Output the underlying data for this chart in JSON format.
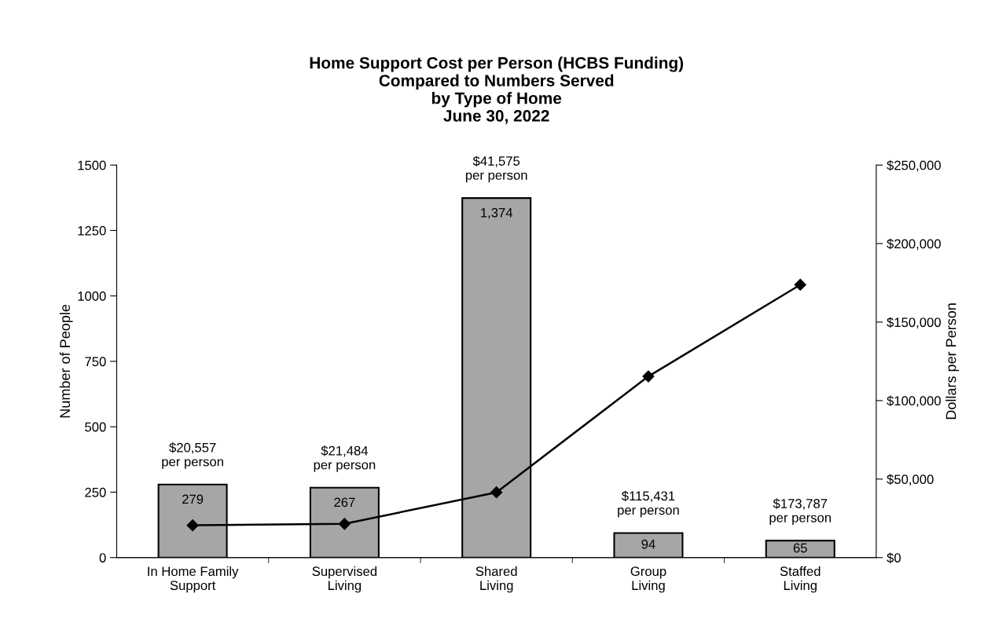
{
  "chart_data": {
    "type": "bar",
    "title": "Home Support Cost per Person (HCBS Funding)\nCompared to Numbers Served\nby Type of Home\nJune 30, 2022",
    "ylabel": "Number of People",
    "y2label": "Dollars per Person",
    "categories": [
      "In Home Family\nSupport",
      "Supervised\nLiving",
      "Shared\nLiving",
      "Group\nLiving",
      "Staffed\nLiving"
    ],
    "series": [
      {
        "color": "#a6a6a6",
        "values": [
          279,
          267,
          1374,
          94,
          65
        ],
        "value_labels": [
          "279",
          "267",
          "1,374",
          "94",
          "65"
        ]
      },
      {
        "type": "line",
        "axis": "y2",
        "color": "#000000",
        "marker": "diamond",
        "line_style": "solid",
        "values": [
          20557,
          21484,
          41575,
          115431,
          173787
        ]
      }
    ],
    "annotations": [
      "$20,557\nper person",
      "$21,484\nper person",
      "$41,575\nper person",
      "$115,431\nper person",
      "$173,787\nper person"
    ],
    "ylim": [
      0,
      1500
    ],
    "yticks": [
      0,
      250,
      500,
      750,
      1000,
      1250,
      1500
    ],
    "y2lim": [
      0,
      250000
    ],
    "y2ticks": [
      {
        "value": 0,
        "label": "$0"
      },
      {
        "value": 50000,
        "label": "$50,000"
      },
      {
        "value": 100000,
        "label": "$100,000"
      },
      {
        "value": 150000,
        "label": "$150,000"
      },
      {
        "value": 200000,
        "label": "$200,000"
      },
      {
        "value": 250000,
        "label": "$250,000"
      }
    ],
    "grid": false,
    "legend": false
  }
}
